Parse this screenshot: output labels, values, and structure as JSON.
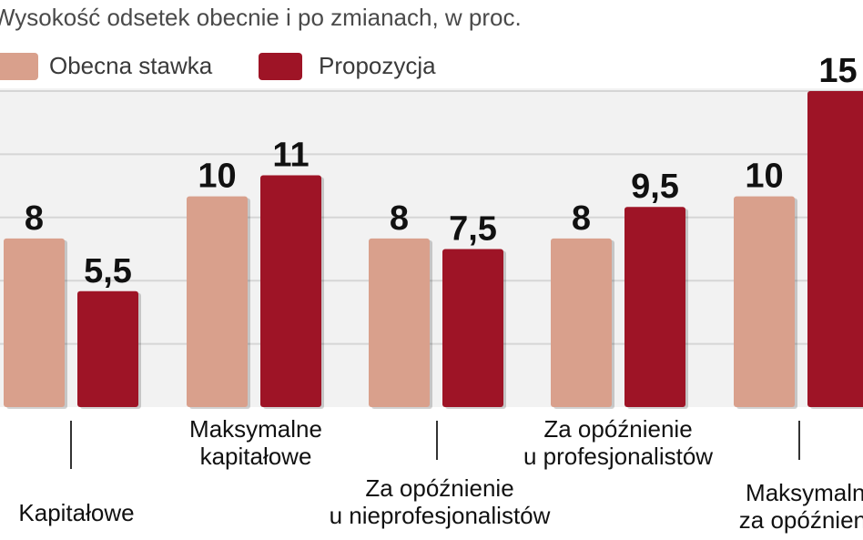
{
  "chart_data": {
    "type": "bar",
    "title": "Wysokość odsetek obecnie i po zmianach, w proc.",
    "categories": [
      "Kapitałowe",
      "Maksymalne\nkapitałowe",
      "Za opóźnienie\nu nieprofesjonalistów",
      "Za opóźnienie\nu profesjonalistów",
      "Maksymalne\nza opóźnienie"
    ],
    "series": [
      {
        "name": "Obecna stawka",
        "color": "#d9a08c",
        "values": [
          8,
          10,
          8,
          8,
          10
        ],
        "labels": [
          "8",
          "10",
          "8",
          "8",
          "10"
        ]
      },
      {
        "name": "Propozycja",
        "color": "#9e1426",
        "values": [
          5.5,
          11,
          7.5,
          9.5,
          15
        ],
        "labels": [
          "5,5",
          "11",
          "7,5",
          "9,5",
          "15"
        ]
      }
    ],
    "ylim": [
      0,
      15
    ],
    "grid": true,
    "legend": "top-left"
  }
}
